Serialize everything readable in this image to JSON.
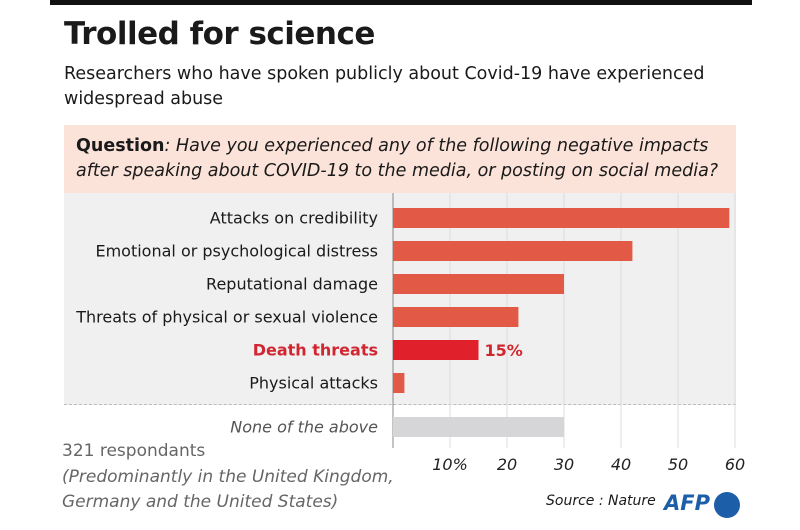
{
  "title": "Trolled for science",
  "subtitle": "Researchers who have spoken publicly about Covid-19 have experienced widespread abuse",
  "question": {
    "label": "Question",
    "text": ": Have you experienced any of the following negative impacts after speaking about COVID-19 to the media, or posting on social media?"
  },
  "chart_data": {
    "type": "bar",
    "orientation": "horizontal",
    "categories": [
      "Attacks on credibility",
      "Emotional or psychological distress",
      "Reputational damage",
      "Threats of physical or sexual violence",
      "Death threats",
      "Physical attacks",
      "None of the above"
    ],
    "values": [
      59,
      42,
      30,
      22,
      15,
      2,
      30
    ],
    "highlight": {
      "category": "Death threats",
      "label": "15%"
    },
    "xlim": [
      0,
      60
    ],
    "ticks": [
      "10%",
      "20",
      "30",
      "40",
      "50",
      "60"
    ],
    "tick_values": [
      10,
      20,
      30,
      40,
      50,
      60
    ],
    "grid": true,
    "colors": {
      "bar": "#e25a45",
      "highlight": "#e0202a",
      "none": "#d6d6d8",
      "highlight_text": "#d12530"
    }
  },
  "footnote": {
    "line1": "321 respondants",
    "line2": "(Predominantly in the United Kingdom, Germany and the United States)"
  },
  "source": "Source : Nature",
  "logo": "AFP"
}
